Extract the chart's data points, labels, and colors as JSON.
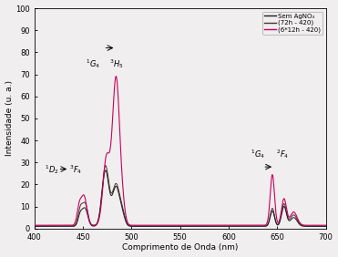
{
  "xlabel": "Comprimento de Onda (nm)",
  "ylabel": "Intensidade (u. a.)",
  "xlim": [
    400,
    700
  ],
  "ylim": [
    0,
    100
  ],
  "xticks": [
    400,
    450,
    500,
    550,
    600,
    650,
    700
  ],
  "yticks": [
    0,
    10,
    20,
    30,
    40,
    50,
    60,
    70,
    80,
    90,
    100
  ],
  "legend_labels": [
    "Sem AgNO₃",
    "(72h - 420)",
    "(6*12h - 420)"
  ],
  "colors_line": [
    "#1a1a1a",
    "#4a3030",
    "#c8005a"
  ],
  "bg_color": "#f0eeee"
}
